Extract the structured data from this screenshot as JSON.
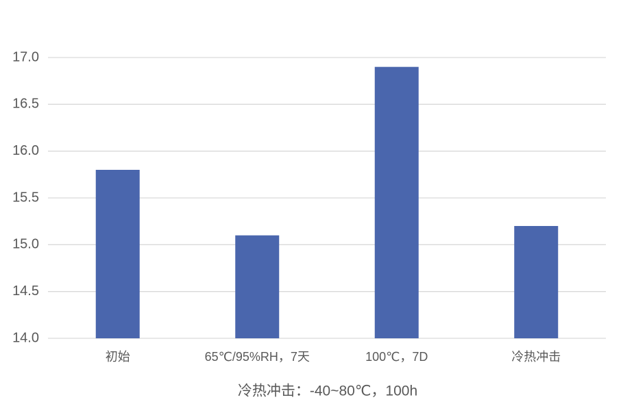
{
  "chart_data": {
    "type": "bar",
    "x_label": "冷热冲击：-40~80℃，100h",
    "categories": [
      "初始",
      "65℃/95%RH，7天",
      "100℃，7D",
      "冷热冲击"
    ],
    "values": [
      15.8,
      15.1,
      16.9,
      15.2
    ],
    "color": "#4a66ad",
    "ylim": [
      14,
      17
    ],
    "yticks": [
      {
        "value": 14,
        "label": "14.0"
      },
      14.5,
      {
        "value": 15,
        "label": "15.0"
      },
      15.5,
      {
        "value": 16,
        "label": "16.0"
      },
      16.5,
      {
        "value": 17,
        "label": "17.0"
      }
    ],
    "grid": true
  }
}
